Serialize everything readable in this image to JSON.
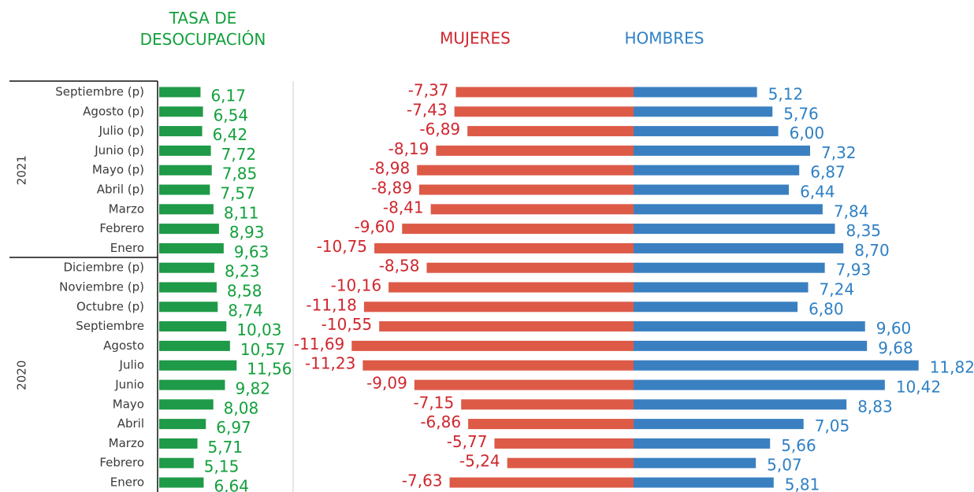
{
  "chart_data": [
    {
      "type": "bar",
      "title": "TASA DE DESOCUPACIÓN",
      "color": "#1e9a48",
      "label_color": "#13a03c",
      "groups": [
        {
          "label": "2021",
          "categories": [
            "Septiembre (p)",
            "Agosto (p)",
            "Julio (p)",
            "Junio (p)",
            "Mayo (p)",
            "Abril (p)",
            "Marzo",
            "Febrero",
            "Enero"
          ]
        },
        {
          "label": "2020",
          "categories": [
            "Diciembre (p)",
            "Noviembre (p)",
            "Octubre (p)",
            "Septiembre",
            "Agosto",
            "Julio",
            "Junio",
            "Mayo",
            "Abril",
            "Marzo",
            "Febrero",
            "Enero"
          ]
        }
      ],
      "values": [
        6.17,
        6.54,
        6.42,
        7.72,
        7.85,
        7.57,
        8.11,
        8.93,
        9.63,
        8.23,
        8.58,
        8.74,
        10.03,
        10.57,
        11.56,
        9.82,
        8.08,
        6.97,
        5.71,
        5.15,
        6.64
      ],
      "value_labels": [
        "6,17",
        "6,54",
        "6,42",
        "7,72",
        "7,85",
        "7,57",
        "8,11",
        "8,93",
        "9,63",
        "8,23",
        "8,58",
        "8,74",
        "10,03",
        "10,57",
        "11,56",
        "9,82",
        "8,08",
        "6,97",
        "5,71",
        "5,15",
        "6,64"
      ]
    },
    {
      "type": "butterfly",
      "series": [
        {
          "name": "MUJERES",
          "color": "#dd5a47",
          "label_color": "#d0262e",
          "values": [
            -7.37,
            -7.43,
            -6.89,
            -8.19,
            -8.98,
            -8.89,
            -8.41,
            -9.6,
            -10.75,
            -8.58,
            -10.16,
            -11.18,
            -10.55,
            -11.69,
            -11.23,
            -9.09,
            -7.15,
            -6.86,
            -5.77,
            -5.24,
            -7.63
          ],
          "value_labels": [
            "-7,37",
            "-7,43",
            "-6,89",
            "-8,19",
            "-8,98",
            "-8,89",
            "-8,41",
            "-9,60",
            "-10,75",
            "-8,58",
            "-10,16",
            "-11,18",
            "-10,55",
            "-11,69",
            "-11,23",
            "-9,09",
            "-7,15",
            "-6,86",
            "-5,77",
            "-5,24",
            "-7,63"
          ]
        },
        {
          "name": "HOMBRES",
          "color": "#3a80c1",
          "label_color": "#2f80c4",
          "values": [
            5.12,
            5.76,
            6.0,
            7.32,
            6.87,
            6.44,
            7.84,
            8.35,
            8.7,
            7.93,
            7.24,
            6.8,
            9.6,
            9.68,
            11.82,
            10.42,
            8.83,
            7.05,
            5.66,
            5.07,
            5.81
          ],
          "value_labels": [
            "5,12",
            "5,76",
            "6,00",
            "7,32",
            "6,87",
            "6,44",
            "7,84",
            "8,35",
            "8,70",
            "7,93",
            "7,24",
            "6,80",
            "9,60",
            "9,68",
            "11,82",
            "10,42",
            "8,83",
            "7,05",
            "5,66",
            "5,07",
            "5,81"
          ]
        }
      ]
    }
  ]
}
